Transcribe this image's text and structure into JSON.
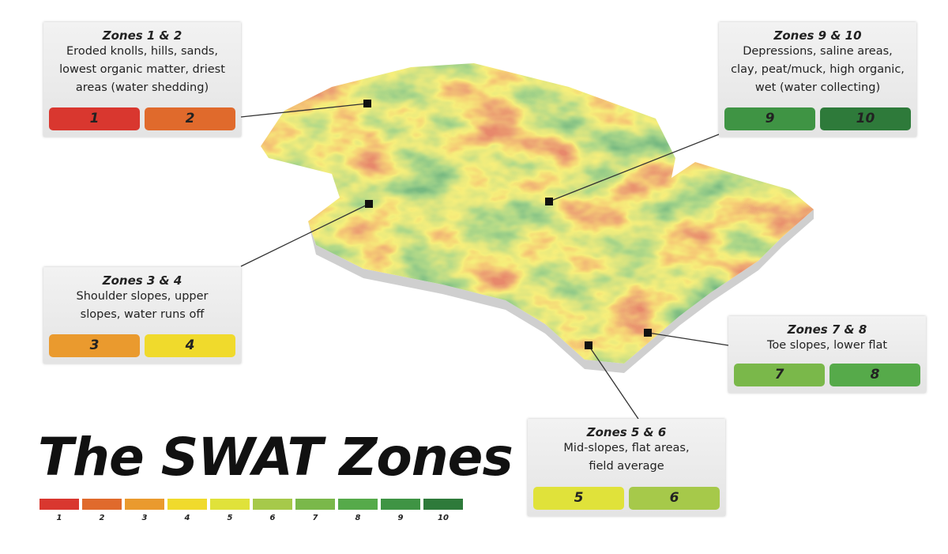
{
  "title": "The SWAT Zones",
  "legend": [
    {
      "label": 1,
      "color": "#d9372f"
    },
    {
      "label": 2,
      "color": "#e06a2c"
    },
    {
      "label": 3,
      "color": "#ea9a2e"
    },
    {
      "label": 4,
      "color": "#f0da2c"
    },
    {
      "label": 5,
      "color": "#e0e23a"
    },
    {
      "label": 6,
      "color": "#a6c94a"
    },
    {
      "label": 7,
      "color": "#7ab84a"
    },
    {
      "label": 8,
      "color": "#56aa4a"
    },
    {
      "label": 9,
      "color": "#3f9444"
    },
    {
      "label": 10,
      "color": "#2e7a3a"
    }
  ],
  "callouts": [
    {
      "title": "Zones 1 & 2",
      "lines": [
        "Eroded knolls, hills, sands,",
        "lowest organic matter, driest",
        "areas (water shedding)"
      ],
      "zones": [
        1,
        2
      ]
    },
    {
      "title": "Zones 3 & 4",
      "lines": [
        "Shoulder slopes, upper",
        "slopes, water runs off"
      ],
      "zones": [
        3,
        4
      ]
    },
    {
      "title": "Zones 9 & 10",
      "lines": [
        "Depressions, saline areas,",
        "clay, peat/muck, high organic,",
        "wet (water collecting)"
      ],
      "zones": [
        9,
        10
      ]
    },
    {
      "title": "Zones 7 & 8",
      "lines": [
        "Toe slopes, lower flat"
      ],
      "zones": [
        7,
        8
      ]
    },
    {
      "title": "Zones 5 & 6",
      "lines": [
        "Mid-slopes, flat areas,",
        "field average"
      ],
      "zones": [
        5,
        6
      ]
    }
  ]
}
